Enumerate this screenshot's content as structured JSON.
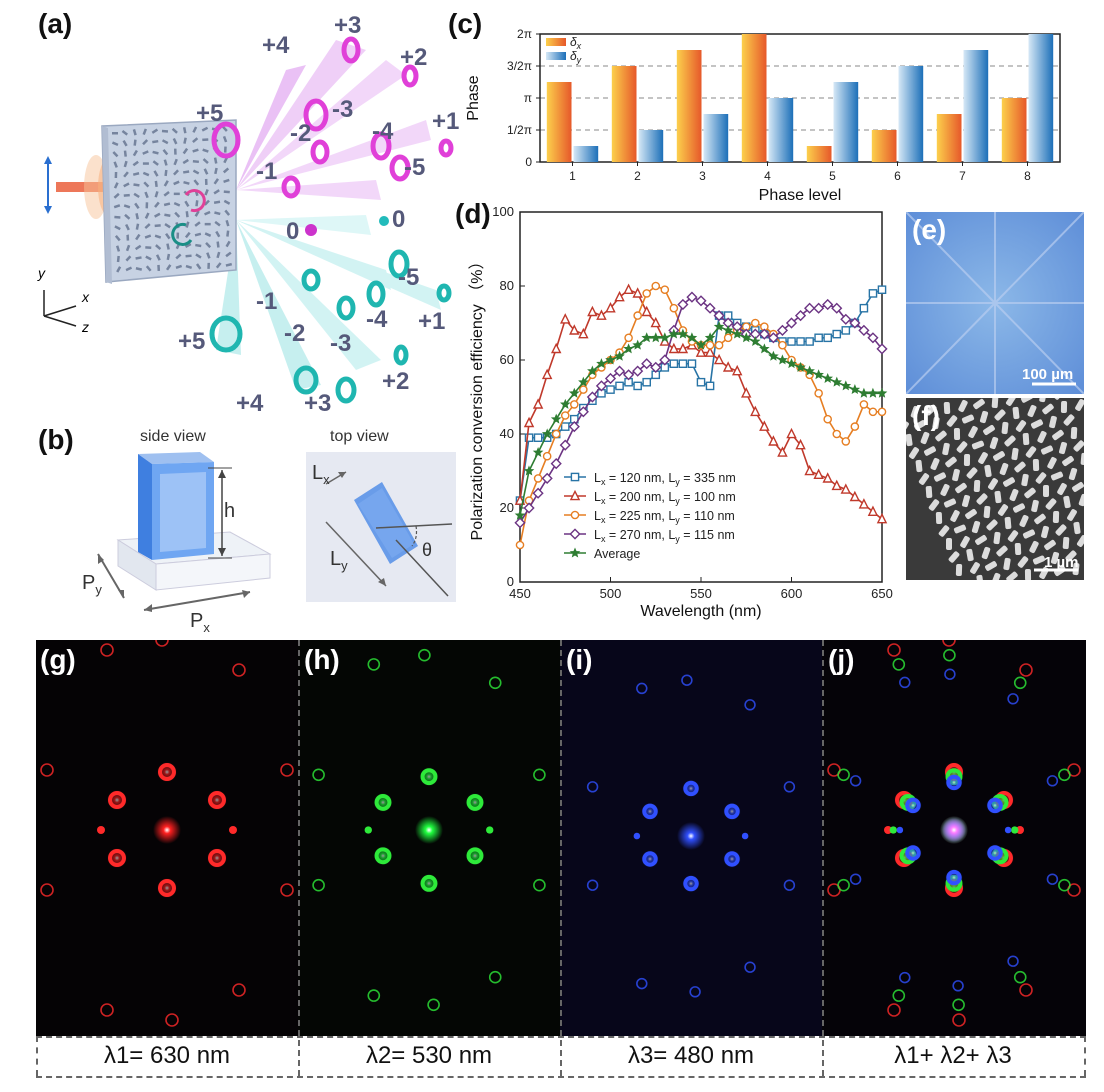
{
  "panel_labels": {
    "a": "(a)",
    "b": "(b)",
    "c": "(c)",
    "d": "(d)",
    "e": "(e)",
    "f": "(f)",
    "g": "(g)",
    "h": "(h)",
    "i": "(i)",
    "j": "(j)"
  },
  "panel_a": {
    "orders_top": [
      "+4",
      "+3",
      "+2",
      "+1",
      "+5",
      "-3",
      "-2",
      "-4",
      "-1",
      "-5"
    ],
    "orders_bottom": [
      "0",
      "0",
      "-5",
      "-1",
      "-2",
      "-4",
      "+1",
      "+5",
      "-3",
      "+2",
      "+4",
      "+3"
    ],
    "axes": {
      "x": "x",
      "y": "y",
      "z": "z"
    }
  },
  "panel_b": {
    "side_view": "side view",
    "top_view": "top view",
    "h": "h",
    "Px": "P",
    "Px_sub": "x",
    "Py": "P",
    "Py_sub": "y",
    "Lx": "L",
    "Lx_sub": "x",
    "Ly": "L",
    "Ly_sub": "y",
    "theta": "θ"
  },
  "panel_e": {
    "scale": "100 µm"
  },
  "panel_f": {
    "scale": "1 µm"
  },
  "captions": {
    "g": "λ1= 630 nm",
    "h": "λ2= 530 nm",
    "i": "λ3= 480 nm",
    "j": "λ1+ λ2+ λ3"
  },
  "chart_data": [
    {
      "id": "c",
      "type": "bar",
      "title": "",
      "xlabel": "Phase level",
      "ylabel": "Phase",
      "categories": [
        "1",
        "2",
        "3",
        "4",
        "5",
        "6",
        "7",
        "8"
      ],
      "ytick_labels": [
        "0",
        "1/2π",
        "π",
        "3/2π",
        "2π"
      ],
      "ylim": [
        0,
        4
      ],
      "legend": [
        "δ",
        "δ"
      ],
      "legend_subs": [
        "x",
        "y"
      ],
      "series": [
        {
          "name": "δx",
          "values": [
            2.5,
            3,
            3.5,
            4,
            0.5,
            1,
            1.5,
            2
          ],
          "color": "#f39c12"
        },
        {
          "name": "δy",
          "values": [
            0.5,
            1,
            1.5,
            2,
            2.5,
            3,
            3.5,
            4
          ],
          "color": "#2a7fc1"
        }
      ],
      "grid": "dashed at 1,2,3"
    },
    {
      "id": "d",
      "type": "line",
      "xlabel": "Wavelength (nm)",
      "ylabel": "Polarization conversion efficiency （%）",
      "xlim": [
        450,
        650
      ],
      "ylim": [
        0,
        100
      ],
      "xticks": [
        "450",
        "500",
        "550",
        "600",
        "650"
      ],
      "yticks": [
        "0",
        "20",
        "40",
        "60",
        "80",
        "100"
      ],
      "legend_position": "bottom-left",
      "series": [
        {
          "name": "L",
          "label": "Lx = 120 nm, Ly = 335 nm",
          "label_parts": [
            "L",
            "x",
            " = 120 nm, L",
            "y",
            " = 335 nm"
          ],
          "color": "#2874a6",
          "marker": "square",
          "x": [
            450,
            455,
            460,
            465,
            470,
            475,
            480,
            485,
            490,
            495,
            500,
            505,
            510,
            515,
            520,
            525,
            530,
            535,
            540,
            545,
            550,
            555,
            560,
            565,
            570,
            575,
            580,
            585,
            590,
            595,
            600,
            605,
            610,
            615,
            620,
            625,
            630,
            635,
            640,
            645,
            650
          ],
          "y": [
            22,
            39,
            39,
            39,
            40,
            42,
            44,
            47,
            49,
            51,
            52,
            53,
            54,
            53,
            54,
            56,
            58,
            59,
            59,
            59,
            54,
            53,
            72,
            72,
            70,
            69,
            68,
            67,
            66,
            65,
            65,
            65,
            65,
            66,
            66,
            67,
            68,
            70,
            74,
            78,
            79
          ]
        },
        {
          "name": "L",
          "label": "Lx = 200 nm, Ly = 100 nm",
          "label_parts": [
            "L",
            "x",
            " = 200 nm, L",
            "y",
            " = 100 nm"
          ],
          "color": "#c0392b",
          "marker": "triangle",
          "x": [
            450,
            455,
            460,
            465,
            470,
            475,
            480,
            485,
            490,
            495,
            500,
            505,
            510,
            515,
            520,
            525,
            530,
            535,
            540,
            545,
            550,
            555,
            560,
            565,
            570,
            575,
            580,
            585,
            590,
            595,
            600,
            605,
            610,
            615,
            620,
            625,
            630,
            635,
            640,
            645,
            650
          ],
          "y": [
            22,
            43,
            48,
            56,
            63,
            71,
            68,
            67,
            73,
            72,
            74,
            77,
            79,
            78,
            73,
            70,
            65,
            63,
            63,
            64,
            62,
            62,
            60,
            58,
            57,
            51,
            46,
            42,
            38,
            35,
            40,
            37,
            30,
            29,
            28,
            26,
            25,
            23,
            21,
            19,
            17
          ]
        },
        {
          "name": "L",
          "label": "Lx = 225 nm, Ly = 110 nm",
          "label_parts": [
            "L",
            "x",
            " = 225 nm, L",
            "y",
            " = 110 nm"
          ],
          "color": "#e67e22",
          "marker": "circle",
          "x": [
            450,
            455,
            460,
            465,
            470,
            475,
            480,
            485,
            490,
            495,
            500,
            505,
            510,
            515,
            520,
            525,
            530,
            535,
            540,
            545,
            550,
            555,
            560,
            565,
            570,
            575,
            580,
            585,
            590,
            595,
            600,
            605,
            610,
            615,
            620,
            625,
            630,
            635,
            640,
            645,
            650
          ],
          "y": [
            10,
            22,
            28,
            34,
            40,
            45,
            48,
            52,
            56,
            58,
            60,
            62,
            66,
            72,
            78,
            80,
            79,
            74,
            68,
            65,
            64,
            64,
            64,
            66,
            68,
            69,
            70,
            69,
            67,
            64,
            60,
            58,
            56,
            51,
            44,
            40,
            38,
            42,
            48,
            46,
            46
          ]
        },
        {
          "name": "L",
          "label": "Lx = 270 nm, Ly = 115 nm",
          "label_parts": [
            "L",
            "x",
            " = 270 nm, L",
            "y",
            " = 115 nm"
          ],
          "color": "#6c3483",
          "marker": "diamond",
          "x": [
            450,
            455,
            460,
            465,
            470,
            475,
            480,
            485,
            490,
            495,
            500,
            505,
            510,
            515,
            520,
            525,
            530,
            535,
            540,
            545,
            550,
            555,
            560,
            565,
            570,
            575,
            580,
            585,
            590,
            595,
            600,
            605,
            610,
            615,
            620,
            625,
            630,
            635,
            640,
            645,
            650
          ],
          "y": [
            16,
            20,
            24,
            28,
            32,
            37,
            42,
            46,
            50,
            53,
            55,
            57,
            56,
            57,
            59,
            58,
            60,
            68,
            75,
            77,
            76,
            74,
            72,
            70,
            69,
            67,
            67,
            67,
            66,
            68,
            70,
            72,
            74,
            74,
            75,
            74,
            71,
            70,
            68,
            66,
            63
          ]
        },
        {
          "name": "Average",
          "label": "Average",
          "label_parts": [
            "Average",
            "",
            "",
            "",
            ""
          ],
          "color": "#2e7d32",
          "marker": "star",
          "x": [
            450,
            455,
            460,
            465,
            470,
            475,
            480,
            485,
            490,
            495,
            500,
            505,
            510,
            515,
            520,
            525,
            530,
            535,
            540,
            545,
            550,
            555,
            560,
            565,
            570,
            575,
            580,
            585,
            590,
            595,
            600,
            605,
            610,
            615,
            620,
            625,
            630,
            635,
            640,
            645,
            650
          ],
          "y": [
            18,
            30,
            35,
            40,
            44,
            48,
            51,
            54,
            57,
            59,
            60,
            61,
            63,
            64,
            66,
            66,
            66,
            67,
            67,
            66,
            64,
            66,
            69,
            68,
            67,
            66,
            65,
            63,
            61,
            60,
            59,
            58,
            57,
            56,
            55,
            54,
            53,
            52,
            51,
            51,
            51
          ]
        }
      ]
    }
  ]
}
